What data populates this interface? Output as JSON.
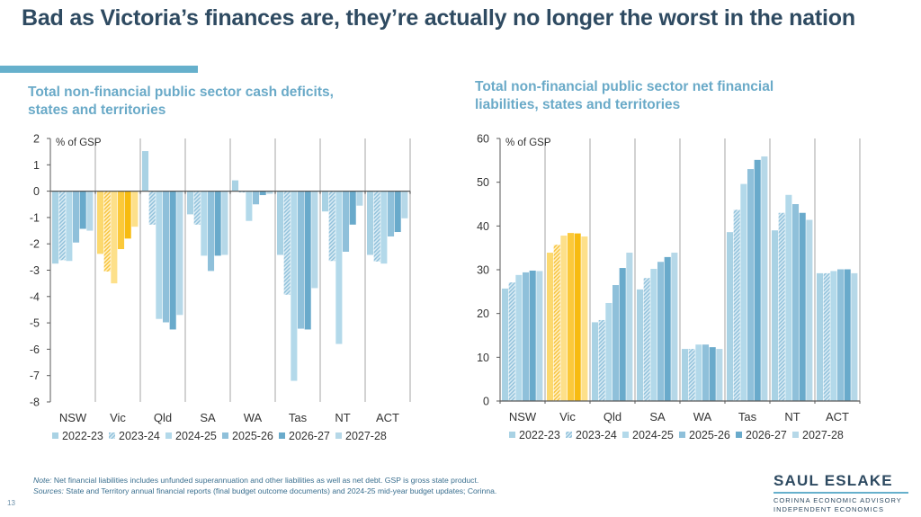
{
  "slide": {
    "title": "Bad as Victoria’s finances are, they’re actually no longer the worst in the nation",
    "page_number": "13",
    "note_label": "Note:",
    "note_text": " Net financial liabilities includes unfunded superannuation and other liabilities as well as net debt. GSP is gross state product.",
    "sources_label": "Sources:",
    "sources_text": " State and Territory annual financial reports (final budget outcome documents) and 2024-25 mid-year budget updates; Corinna.",
    "logo": {
      "name": "SAUL ESLAKE",
      "line1": "CORINNA ECONOMIC ADVISORY",
      "line2": "INDEPENDENT ECONOMICS"
    }
  },
  "colors": {
    "series": [
      "#a9d2e4",
      "#a9d2e4",
      "#b3d9ea",
      "#8fc0da",
      "#69aacb",
      "#b6d8e8"
    ],
    "highlight": [
      "#fcd96f",
      "#fcd96f",
      "#fde08a",
      "#fbc93a",
      "#f7bb10",
      "#fde08a"
    ],
    "title": "#2e4a61",
    "subtitle": "#6aaac8",
    "accent": "#66b0cc"
  },
  "chart_data": [
    {
      "type": "bar",
      "title": "Total non-financial public sector cash deficits, states and territories",
      "ylabel": "% of GSP",
      "xlabel": "",
      "ylim": [
        -8,
        2
      ],
      "yticks": [
        2,
        1,
        0,
        -1,
        -2,
        -3,
        -4,
        -5,
        -6,
        -7,
        -8
      ],
      "categories": [
        "NSW",
        "Vic",
        "Qld",
        "SA",
        "WA",
        "Tas",
        "NT",
        "ACT"
      ],
      "highlight_category": "Vic",
      "legend_position": "bottom",
      "series": [
        {
          "name": "2022-23",
          "values": [
            -2.75,
            -2.38,
            1.52,
            -0.88,
            0.41,
            -2.42,
            -0.77,
            -2.42
          ]
        },
        {
          "name": "2023-24",
          "values": [
            -2.62,
            -3.05,
            -1.27,
            -1.27,
            -0.05,
            -3.93,
            -2.65,
            -2.67
          ]
        },
        {
          "name": "2024-25",
          "values": [
            -2.65,
            -3.5,
            -4.85,
            -2.45,
            -1.13,
            -7.2,
            -5.8,
            -2.75
          ]
        },
        {
          "name": "2025-26",
          "values": [
            -1.95,
            -2.2,
            -4.98,
            -3.03,
            -0.5,
            -5.22,
            -2.3,
            -1.72
          ]
        },
        {
          "name": "2026-27",
          "values": [
            -1.43,
            -1.8,
            -5.25,
            -2.45,
            -0.15,
            -5.25,
            -1.27,
            -1.55
          ]
        },
        {
          "name": "2027-28",
          "values": [
            -1.5,
            -1.35,
            -4.7,
            -2.42,
            -0.1,
            -3.68,
            -0.55,
            -1.03
          ]
        }
      ]
    },
    {
      "type": "bar",
      "title": "Total non-financial public sector net financial liabilities, states and territories",
      "ylabel": "% of GSP",
      "xlabel": "",
      "ylim": [
        0,
        60
      ],
      "yticks": [
        60,
        50,
        40,
        30,
        20,
        10,
        0
      ],
      "categories": [
        "NSW",
        "Vic",
        "Qld",
        "SA",
        "WA",
        "Tas",
        "NT",
        "ACT"
      ],
      "highlight_category": "Vic",
      "legend_position": "bottom",
      "series": [
        {
          "name": "2022-23",
          "values": [
            25.7,
            33.9,
            18.0,
            25.5,
            11.9,
            38.6,
            39.0,
            29.2
          ]
        },
        {
          "name": "2023-24",
          "values": [
            27.1,
            35.7,
            18.5,
            28.1,
            11.9,
            43.7,
            43.0,
            29.2
          ]
        },
        {
          "name": "2024-25",
          "values": [
            28.8,
            37.8,
            22.4,
            30.2,
            12.9,
            49.6,
            47.1,
            29.7
          ]
        },
        {
          "name": "2025-26",
          "values": [
            29.4,
            38.4,
            26.5,
            31.8,
            12.9,
            53.0,
            45.0,
            30.1
          ]
        },
        {
          "name": "2026-27",
          "values": [
            29.8,
            38.3,
            30.4,
            32.9,
            12.3,
            55.1,
            43.0,
            30.1
          ]
        },
        {
          "name": "2027-28",
          "values": [
            29.7,
            37.6,
            33.9,
            33.9,
            11.9,
            55.9,
            41.4,
            29.2
          ]
        }
      ]
    }
  ]
}
